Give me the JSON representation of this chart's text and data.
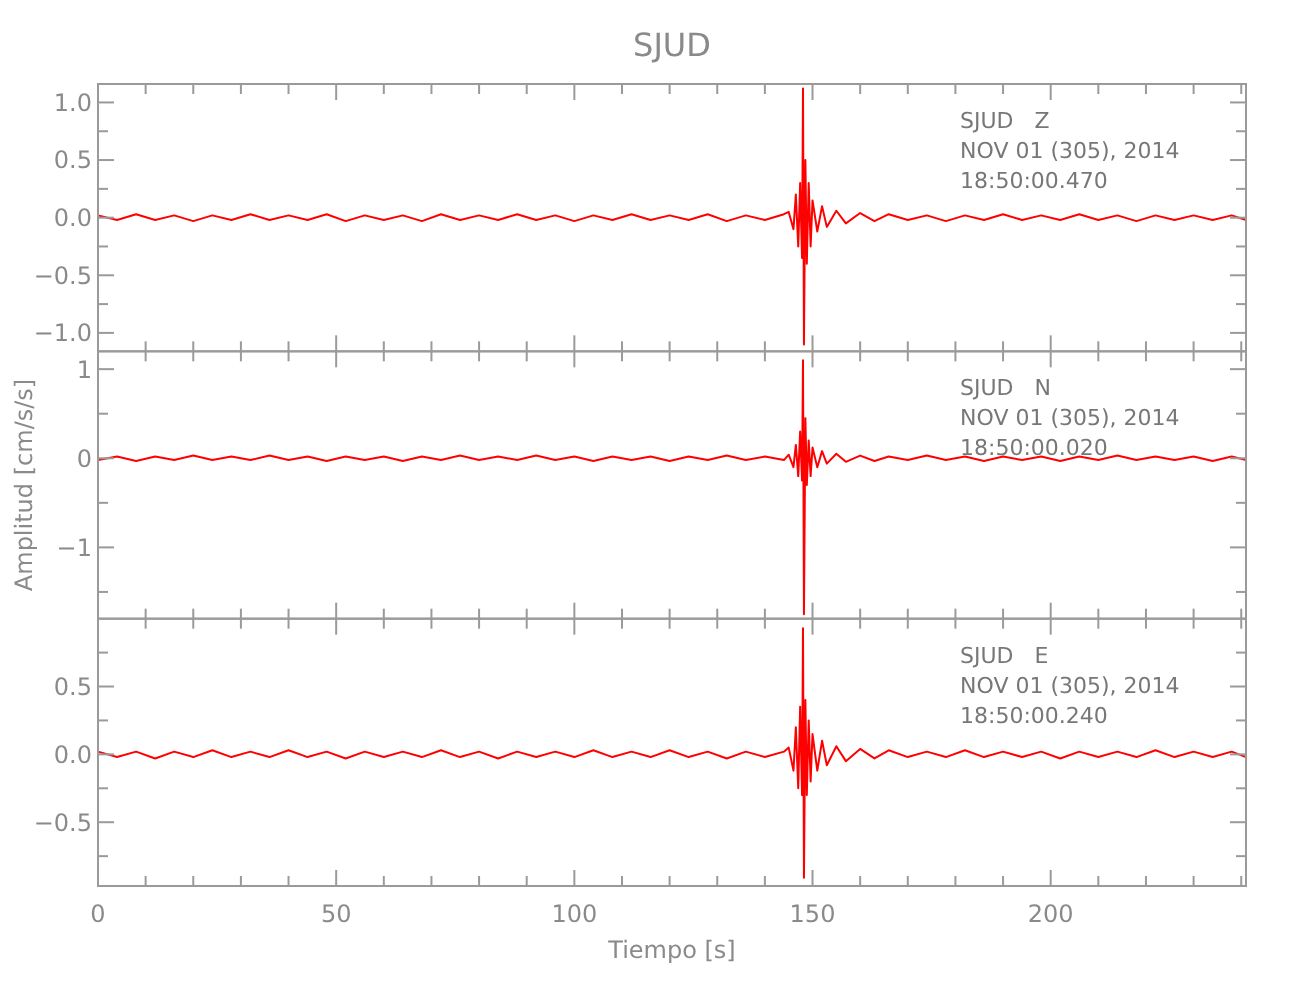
{
  "chart_data": [
    {
      "type": "line",
      "title": "SJUD",
      "annotations": [
        "SJUD   Z",
        "NOV 01 (305), 2014",
        "18:50:00.470"
      ],
      "xlim": [
        0,
        241
      ],
      "xticks": [
        0,
        {
          "value": 10,
          "label": null
        },
        {
          "value": 20,
          "label": null
        },
        {
          "value": 30,
          "label": null
        },
        {
          "value": 40,
          "label": null
        },
        50,
        {
          "value": 60,
          "label": null
        },
        {
          "value": 70,
          "label": null
        },
        {
          "value": 80,
          "label": null
        },
        {
          "value": 90,
          "label": null
        },
        100,
        {
          "value": 110,
          "label": null
        },
        {
          "value": 120,
          "label": null
        },
        {
          "value": 130,
          "label": null
        },
        {
          "value": 140,
          "label": null
        },
        150,
        {
          "value": 160,
          "label": null
        },
        {
          "value": 170,
          "label": null
        },
        {
          "value": 180,
          "label": null
        },
        {
          "value": 190,
          "label": null
        },
        200,
        {
          "value": 210,
          "label": null
        },
        {
          "value": 220,
          "label": null
        },
        {
          "value": 230,
          "label": null
        },
        {
          "value": 240,
          "label": null
        }
      ],
      "ylim": [
        -1.16,
        1.16
      ],
      "yticks": [
        {
          "value": -1.0,
          "label": "−1.0"
        },
        {
          "value": -0.75,
          "label": null
        },
        {
          "value": -0.5,
          "label": "−0.5"
        },
        {
          "value": -0.25,
          "label": null
        },
        {
          "value": 0,
          "label": "0.0"
        },
        {
          "value": 0.25,
          "label": null
        },
        {
          "value": 0.5,
          "label": "0.5"
        },
        {
          "value": 0.75,
          "label": null
        },
        {
          "value": 1.0,
          "label": "1.0"
        }
      ],
      "tick_labels": "y",
      "line_style": "solid",
      "x": [
        0,
        4,
        8,
        12,
        16,
        20,
        24,
        28,
        32,
        36,
        40,
        44,
        48,
        52,
        56,
        60,
        64,
        68,
        72,
        76,
        80,
        84,
        88,
        92,
        96,
        100,
        104,
        108,
        112,
        116,
        120,
        124,
        128,
        132,
        136,
        140,
        144,
        145,
        146,
        146.5,
        147,
        147.4,
        147.8,
        148,
        148.2,
        148.5,
        148.8,
        149.2,
        149.6,
        150,
        151,
        152,
        153,
        155,
        157,
        160,
        163,
        166,
        170,
        174,
        178,
        182,
        186,
        190,
        194,
        198,
        202,
        206,
        210,
        214,
        218,
        222,
        226,
        230,
        234,
        238,
        241
      ],
      "series": [
        {
          "color": "#ff0000",
          "values": [
            0.02,
            -0.02,
            0.03,
            -0.02,
            0.02,
            -0.03,
            0.02,
            -0.02,
            0.03,
            -0.02,
            0.02,
            -0.02,
            0.03,
            -0.03,
            0.02,
            -0.02,
            0.02,
            -0.03,
            0.03,
            -0.02,
            0.02,
            -0.02,
            0.03,
            -0.02,
            0.02,
            -0.03,
            0.02,
            -0.02,
            0.03,
            -0.02,
            0.02,
            -0.02,
            0.03,
            -0.03,
            0.02,
            -0.02,
            0.03,
            0.05,
            -0.1,
            0.2,
            -0.25,
            0.3,
            -0.35,
            1.12,
            -1.1,
            0.5,
            -0.4,
            0.3,
            -0.25,
            0.15,
            -0.12,
            0.1,
            -0.08,
            0.06,
            -0.05,
            0.04,
            -0.03,
            0.03,
            -0.02,
            0.02,
            -0.03,
            0.02,
            -0.02,
            0.03,
            -0.02,
            0.02,
            -0.02,
            0.03,
            -0.02,
            0.02,
            -0.03,
            0.02,
            -0.02,
            0.02,
            -0.02,
            0.02,
            -0.02
          ]
        }
      ]
    },
    {
      "type": "line",
      "ylabel": "Amplitud [cm/s/s]",
      "annotations": [
        "SJUD   N",
        "NOV 01 (305), 2014",
        "18:50:00.020"
      ],
      "xlim": [
        0,
        241
      ],
      "xticks": [
        0,
        {
          "value": 10,
          "label": null
        },
        {
          "value": 20,
          "label": null
        },
        {
          "value": 30,
          "label": null
        },
        {
          "value": 40,
          "label": null
        },
        50,
        {
          "value": 60,
          "label": null
        },
        {
          "value": 70,
          "label": null
        },
        {
          "value": 80,
          "label": null
        },
        {
          "value": 90,
          "label": null
        },
        100,
        {
          "value": 110,
          "label": null
        },
        {
          "value": 120,
          "label": null
        },
        {
          "value": 130,
          "label": null
        },
        {
          "value": 140,
          "label": null
        },
        150,
        {
          "value": 160,
          "label": null
        },
        {
          "value": 170,
          "label": null
        },
        {
          "value": 180,
          "label": null
        },
        {
          "value": 190,
          "label": null
        },
        200,
        {
          "value": 210,
          "label": null
        },
        {
          "value": 220,
          "label": null
        },
        {
          "value": 230,
          "label": null
        },
        {
          "value": 240,
          "label": null
        }
      ],
      "ylim": [
        -1.8,
        1.2
      ],
      "yticks": [
        {
          "value": -1.5,
          "label": null
        },
        {
          "value": -1,
          "label": "−1"
        },
        {
          "value": -0.5,
          "label": null
        },
        0,
        {
          "value": 0.5,
          "label": null
        },
        1
      ],
      "tick_labels": "y",
      "line_style": "solid",
      "x": [
        0,
        4,
        8,
        12,
        16,
        20,
        24,
        28,
        32,
        36,
        40,
        44,
        48,
        52,
        56,
        60,
        64,
        68,
        72,
        76,
        80,
        84,
        88,
        92,
        96,
        100,
        104,
        108,
        112,
        116,
        120,
        124,
        128,
        132,
        136,
        140,
        144,
        145,
        146,
        146.5,
        147,
        147.4,
        147.8,
        148,
        148.2,
        148.5,
        148.8,
        149.2,
        149.6,
        150,
        151,
        152,
        153,
        155,
        157,
        160,
        163,
        166,
        170,
        174,
        178,
        182,
        186,
        190,
        194,
        198,
        202,
        206,
        210,
        214,
        218,
        222,
        226,
        230,
        234,
        238,
        241
      ],
      "series": [
        {
          "color": "#ff0000",
          "values": [
            -0.02,
            0.02,
            -0.03,
            0.02,
            -0.02,
            0.03,
            -0.02,
            0.02,
            -0.02,
            0.03,
            -0.02,
            0.02,
            -0.03,
            0.02,
            -0.02,
            0.02,
            -0.03,
            0.02,
            -0.02,
            0.03,
            -0.02,
            0.02,
            -0.02,
            0.03,
            -0.02,
            0.02,
            -0.03,
            0.02,
            -0.02,
            0.02,
            -0.03,
            0.02,
            -0.02,
            0.03,
            -0.02,
            0.02,
            -0.02,
            0.04,
            -0.1,
            0.15,
            -0.2,
            0.3,
            -0.25,
            1.1,
            -1.75,
            0.45,
            -0.3,
            0.2,
            -0.2,
            0.12,
            -0.1,
            0.08,
            -0.06,
            0.05,
            -0.04,
            0.03,
            -0.03,
            0.02,
            -0.02,
            0.03,
            -0.02,
            0.02,
            -0.03,
            0.02,
            -0.02,
            0.02,
            -0.03,
            0.02,
            -0.02,
            0.03,
            -0.02,
            0.02,
            -0.02,
            0.02,
            -0.03,
            0.02,
            -0.02
          ]
        }
      ]
    },
    {
      "type": "line",
      "xlabel": "Tiempo [s]",
      "annotations": [
        "SJUD   E",
        "NOV 01 (305), 2014",
        "18:50:00.240"
      ],
      "xlim": [
        0,
        241
      ],
      "xticks": [
        0,
        {
          "value": 10,
          "label": null
        },
        {
          "value": 20,
          "label": null
        },
        {
          "value": 30,
          "label": null
        },
        {
          "value": 40,
          "label": null
        },
        50,
        {
          "value": 60,
          "label": null
        },
        {
          "value": 70,
          "label": null
        },
        {
          "value": 80,
          "label": null
        },
        {
          "value": 90,
          "label": null
        },
        100,
        {
          "value": 110,
          "label": null
        },
        {
          "value": 120,
          "label": null
        },
        {
          "value": 130,
          "label": null
        },
        {
          "value": 140,
          "label": null
        },
        150,
        {
          "value": 160,
          "label": null
        },
        {
          "value": 170,
          "label": null
        },
        {
          "value": 180,
          "label": null
        },
        {
          "value": 190,
          "label": null
        },
        200,
        {
          "value": 210,
          "label": null
        },
        {
          "value": 220,
          "label": null
        },
        {
          "value": 230,
          "label": null
        },
        {
          "value": 240,
          "label": null
        }
      ],
      "ylim": [
        -0.97,
        1.0
      ],
      "yticks": [
        {
          "value": -0.75,
          "label": null
        },
        {
          "value": -0.5,
          "label": "−0.5"
        },
        {
          "value": -0.25,
          "label": null
        },
        {
          "value": 0,
          "label": "0.0"
        },
        {
          "value": 0.25,
          "label": null
        },
        {
          "value": 0.5,
          "label": "0.5"
        },
        {
          "value": 0.75,
          "label": null
        }
      ],
      "line_style": "solid",
      "x": [
        0,
        4,
        8,
        12,
        16,
        20,
        24,
        28,
        32,
        36,
        40,
        44,
        48,
        52,
        56,
        60,
        64,
        68,
        72,
        76,
        80,
        84,
        88,
        92,
        96,
        100,
        104,
        108,
        112,
        116,
        120,
        124,
        128,
        132,
        136,
        140,
        144,
        145,
        146,
        146.5,
        147,
        147.4,
        147.8,
        148,
        148.2,
        148.5,
        148.8,
        149.2,
        149.6,
        150,
        151,
        152,
        153,
        155,
        157,
        160,
        163,
        166,
        170,
        174,
        178,
        182,
        186,
        190,
        194,
        198,
        202,
        206,
        210,
        214,
        218,
        222,
        226,
        230,
        234,
        238,
        241
      ],
      "series": [
        {
          "color": "#ff0000",
          "values": [
            0.02,
            -0.02,
            0.02,
            -0.03,
            0.02,
            -0.02,
            0.03,
            -0.02,
            0.02,
            -0.02,
            0.03,
            -0.02,
            0.02,
            -0.03,
            0.02,
            -0.02,
            0.02,
            -0.02,
            0.03,
            -0.02,
            0.02,
            -0.03,
            0.02,
            -0.02,
            0.02,
            -0.02,
            0.03,
            -0.02,
            0.02,
            -0.02,
            0.03,
            -0.02,
            0.02,
            -0.03,
            0.02,
            -0.02,
            0.02,
            0.05,
            -0.12,
            0.2,
            -0.25,
            0.35,
            -0.3,
            0.93,
            -0.91,
            0.4,
            -0.3,
            0.25,
            -0.2,
            0.15,
            -0.12,
            0.1,
            -0.08,
            0.06,
            -0.05,
            0.04,
            -0.03,
            0.03,
            -0.02,
            0.02,
            -0.02,
            0.03,
            -0.02,
            0.02,
            -0.02,
            0.02,
            -0.03,
            0.02,
            -0.02,
            0.02,
            -0.02,
            0.03,
            -0.02,
            0.02,
            -0.02,
            0.02,
            -0.02
          ]
        }
      ]
    }
  ]
}
